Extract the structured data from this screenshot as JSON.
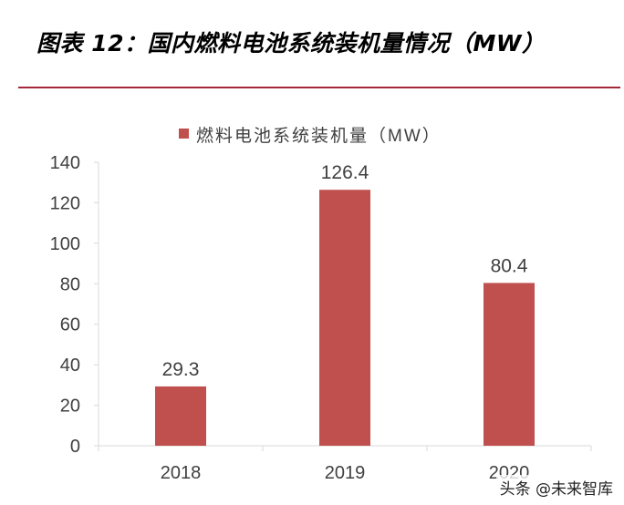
{
  "figure_title": "图表 12：国内燃料电池系统装机量情况（MW）",
  "watermark": "头条 @未来智库",
  "colors": {
    "bar": "#c0504d",
    "rule": "#a4273a",
    "axis": "#d9d9d9",
    "text": "#404040"
  },
  "chart_data": {
    "type": "bar",
    "title": "",
    "categories": [
      "2018",
      "2019",
      "2020"
    ],
    "series": [
      {
        "name": "燃料电池系统装机量（MW）",
        "values": [
          29.3,
          126.4,
          80.4
        ],
        "data_labels": [
          "29.3",
          "126.4",
          "80.4"
        ]
      }
    ],
    "xlabel": "",
    "ylabel": "",
    "ylim": [
      0,
      140
    ],
    "yticks": [
      0,
      20,
      40,
      60,
      80,
      100,
      120,
      140
    ],
    "grid": false,
    "legend": "top-center"
  }
}
